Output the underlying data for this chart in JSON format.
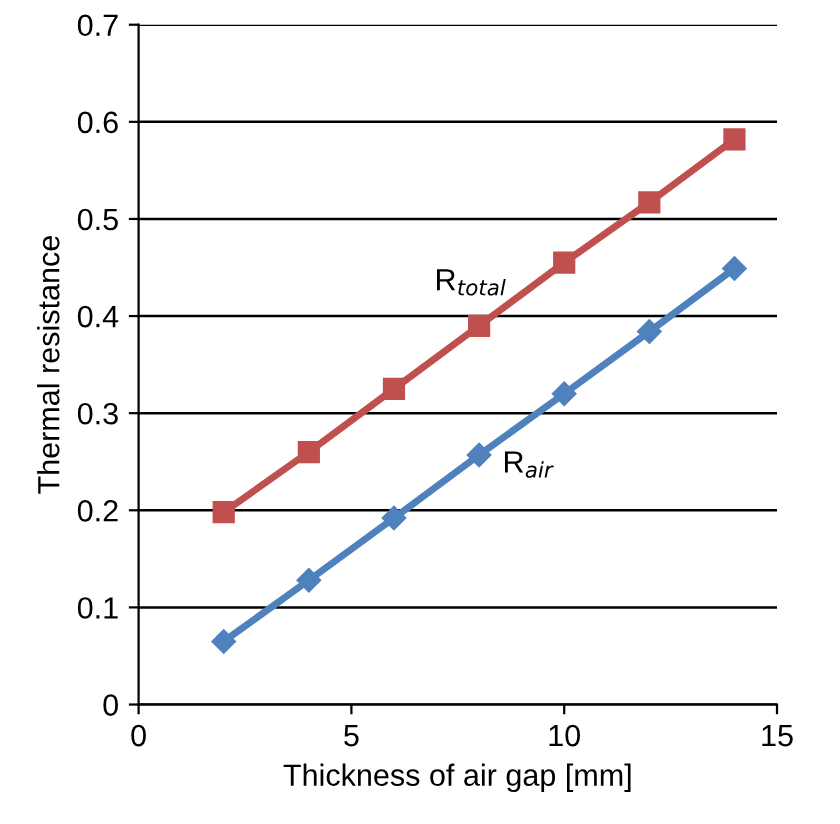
{
  "chart_data": {
    "type": "line",
    "xlabel": "Thickness of air gap [mm]",
    "ylabel": "Thermal resistance",
    "x": [
      2,
      4,
      6,
      8,
      10,
      12,
      14
    ],
    "series": [
      {
        "name": "R$_{total}$",
        "color": "#c0504d",
        "marker": "square",
        "values": [
          0.198,
          0.26,
          0.325,
          0.39,
          0.455,
          0.517,
          0.582
        ]
      },
      {
        "name": "R$_{air}$",
        "color": "#4f81bd",
        "marker": "diamond",
        "values": [
          0.065,
          0.128,
          0.192,
          0.257,
          0.32,
          0.384,
          0.449
        ]
      }
    ],
    "xlim": [
      0,
      15
    ],
    "xticks": [
      0,
      5,
      10,
      15
    ],
    "ylim": [
      0,
      0.7
    ],
    "yticks": [
      0,
      0.1,
      0.2,
      0.3,
      0.4,
      0.5,
      0.6,
      0.7
    ],
    "grid": "y",
    "legend": false
  }
}
